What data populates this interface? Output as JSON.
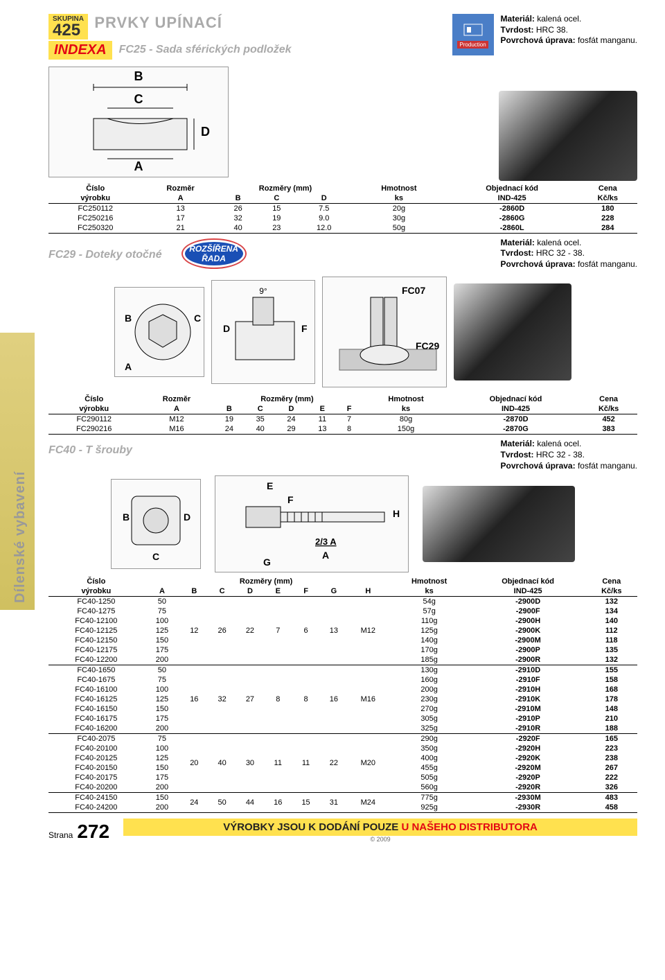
{
  "group": {
    "label": "SKUPINA",
    "num": "425",
    "heading": "PRVKY UPÍNACÍ"
  },
  "brand": "INDEXA",
  "fc25": {
    "title": "FC25 - Sada sférických podložek",
    "material": {
      "m": "kalená ocel.",
      "t": "HRC 38.",
      "p": "fosfát manganu."
    },
    "icon_label": "Production",
    "headers": {
      "cislo": "Číslo",
      "vyrobku": "výrobku",
      "rozmer": "Rozměr",
      "rozmery": "Rozměry (mm)",
      "hm": "Hmotnost",
      "ks": "ks",
      "obj": "Objednací kód",
      "ind": "IND-425",
      "cena": "Cena",
      "kcks": "Kč/ks",
      "A": "A",
      "B": "B",
      "C": "C",
      "D": "D"
    },
    "rows": [
      {
        "p": "FC250112",
        "A": "13",
        "B": "26",
        "C": "15",
        "D": "7.5",
        "w": "20g",
        "k": "-2860D",
        "c": "180"
      },
      {
        "p": "FC250216",
        "A": "17",
        "B": "32",
        "C": "19",
        "D": "9.0",
        "w": "30g",
        "k": "-2860G",
        "c": "228"
      },
      {
        "p": "FC250320",
        "A": "21",
        "B": "40",
        "C": "23",
        "D": "12.0",
        "w": "50g",
        "k": "-2860L",
        "c": "284"
      }
    ]
  },
  "fc29": {
    "title": "FC29 - Doteky otočné",
    "badge1": "ROZŠÍŘENÁ",
    "badge2": "ŘADA",
    "material": {
      "m": "kalená ocel.",
      "t": "HRC 32 - 38.",
      "p": "fosfát manganu."
    },
    "headers": {
      "cislo": "Číslo",
      "vyrobku": "výrobku",
      "rozmer": "Rozměr",
      "rozmery": "Rozměry (mm)",
      "hm": "Hmotnost",
      "ks": "ks",
      "obj": "Objednací kód",
      "ind": "IND-425",
      "cena": "Cena",
      "kcks": "Kč/ks",
      "A": "A",
      "B": "B",
      "C": "C",
      "D": "D",
      "E": "E",
      "F": "F"
    },
    "rows": [
      {
        "p": "FC290112",
        "A": "M12",
        "B": "19",
        "C": "35",
        "D": "24",
        "E": "11",
        "F": "7",
        "w": "80g",
        "k": "-2870D",
        "c": "452"
      },
      {
        "p": "FC290216",
        "A": "M16",
        "B": "24",
        "C": "40",
        "D": "29",
        "E": "13",
        "F": "8",
        "w": "150g",
        "k": "-2870G",
        "c": "383"
      }
    ],
    "diag_labels": {
      "angle": "9°",
      "fc07": "FC07",
      "fc29": "FC29"
    }
  },
  "fc40": {
    "title": "FC40 - T šrouby",
    "material": {
      "m": "kalená ocel.",
      "t": "HRC 32 - 38.",
      "p": "fosfát manganu."
    },
    "headers": {
      "cislo": "Číslo",
      "vyrobku": "výrobku",
      "rozmery": "Rozměry  (mm)",
      "hm": "Hmotnost",
      "ks": "ks",
      "obj": "Objednací kód",
      "ind": "IND-425",
      "cena": "Cena",
      "kcks": "Kč/ks",
      "A": "A",
      "B": "B",
      "C": "C",
      "D": "D",
      "E": "E",
      "F": "F",
      "G": "G",
      "H": "H"
    },
    "groups": [
      {
        "B": "12",
        "C": "26",
        "D": "22",
        "E": "7",
        "F": "6",
        "G": "13",
        "H": "M12",
        "rows": [
          {
            "p": "FC40-1250",
            "A": "50",
            "w": "54g",
            "k": "-2900D",
            "c": "132"
          },
          {
            "p": "FC40-1275",
            "A": "75",
            "w": "57g",
            "k": "-2900F",
            "c": "134"
          },
          {
            "p": "FC40-12100",
            "A": "100",
            "w": "110g",
            "k": "-2900H",
            "c": "140"
          },
          {
            "p": "FC40-12125",
            "A": "125",
            "w": "125g",
            "k": "-2900K",
            "c": "112"
          },
          {
            "p": "FC40-12150",
            "A": "150",
            "w": "140g",
            "k": "-2900M",
            "c": "118"
          },
          {
            "p": "FC40-12175",
            "A": "175",
            "w": "170g",
            "k": "-2900P",
            "c": "135"
          },
          {
            "p": "FC40-12200",
            "A": "200",
            "w": "185g",
            "k": "-2900R",
            "c": "132"
          }
        ]
      },
      {
        "B": "16",
        "C": "32",
        "D": "27",
        "E": "8",
        "F": "8",
        "G": "16",
        "H": "M16",
        "rows": [
          {
            "p": "FC40-1650",
            "A": "50",
            "w": "130g",
            "k": "-2910D",
            "c": "155"
          },
          {
            "p": "FC40-1675",
            "A": "75",
            "w": "160g",
            "k": "-2910F",
            "c": "158"
          },
          {
            "p": "FC40-16100",
            "A": "100",
            "w": "200g",
            "k": "-2910H",
            "c": "168"
          },
          {
            "p": "FC40-16125",
            "A": "125",
            "w": "230g",
            "k": "-2910K",
            "c": "178"
          },
          {
            "p": "FC40-16150",
            "A": "150",
            "w": "270g",
            "k": "-2910M",
            "c": "148"
          },
          {
            "p": "FC40-16175",
            "A": "175",
            "w": "305g",
            "k": "-2910P",
            "c": "210"
          },
          {
            "p": "FC40-16200",
            "A": "200",
            "w": "325g",
            "k": "-2910R",
            "c": "188"
          }
        ]
      },
      {
        "B": "20",
        "C": "40",
        "D": "30",
        "E": "11",
        "F": "11",
        "G": "22",
        "H": "M20",
        "rows": [
          {
            "p": "FC40-2075",
            "A": "75",
            "w": "290g",
            "k": "-2920F",
            "c": "165"
          },
          {
            "p": "FC40-20100",
            "A": "100",
            "w": "350g",
            "k": "-2920H",
            "c": "223"
          },
          {
            "p": "FC40-20125",
            "A": "125",
            "w": "400g",
            "k": "-2920K",
            "c": "238"
          },
          {
            "p": "FC40-20150",
            "A": "150",
            "w": "455g",
            "k": "-2920M",
            "c": "267"
          },
          {
            "p": "FC40-20175",
            "A": "175",
            "w": "505g",
            "k": "-2920P",
            "c": "222"
          },
          {
            "p": "FC40-20200",
            "A": "200",
            "w": "560g",
            "k": "-2920R",
            "c": "326"
          }
        ]
      },
      {
        "B": "24",
        "C": "50",
        "D": "44",
        "E": "16",
        "F": "15",
        "G": "31",
        "H": "M24",
        "rows": [
          {
            "p": "FC40-24150",
            "A": "150",
            "w": "775g",
            "k": "-2930M",
            "c": "483"
          },
          {
            "p": "FC40-24200",
            "A": "200",
            "w": "925g",
            "k": "-2930R",
            "c": "458"
          }
        ]
      }
    ],
    "diag_labels": {
      "E": "E",
      "F": "F",
      "H": "H",
      "a23": "2/3 A",
      "A": "A",
      "G": "G",
      "B": "B",
      "C": "C",
      "D": "D"
    }
  },
  "sidebar": "Dílenské vybavení",
  "footer": {
    "t1": "VÝROBKY JSOU K DODÁNÍ POUZE",
    "t2": " U NAŠEHO DISTRIBUTORA",
    "copy": "© 2009",
    "strana": "Strana",
    "page": "272"
  },
  "labels": {
    "material": "Materiál:",
    "tvrdost": "Tvrdost:",
    "povrch": "Povrchová úprava:"
  }
}
